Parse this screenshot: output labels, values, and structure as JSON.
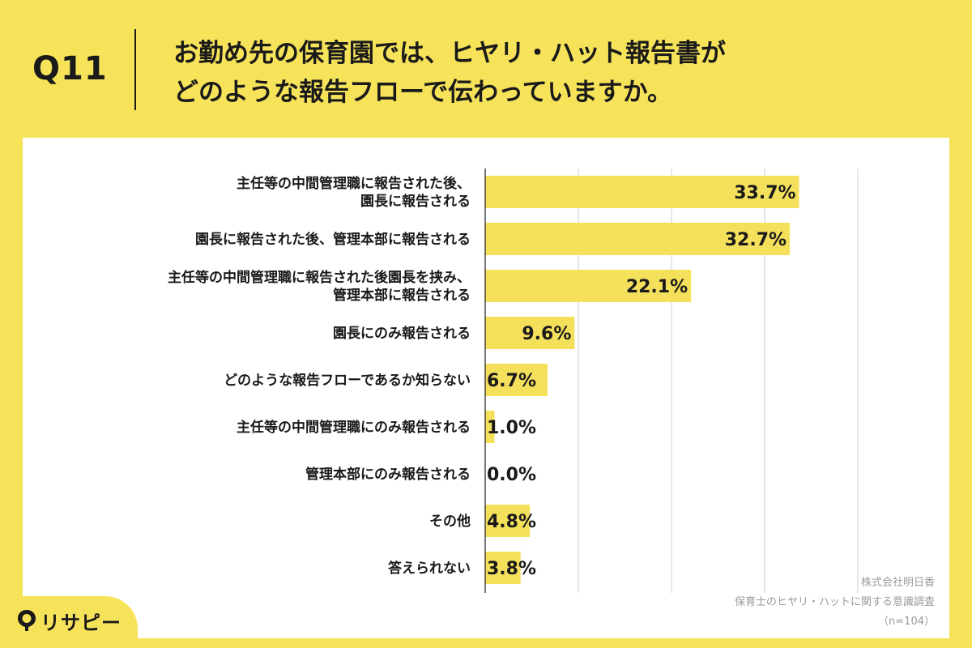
{
  "header": {
    "question_number": "Q11",
    "title": "お勤め先の保育園では、ヒヤリ・ハット報告書が\nどのような報告フローで伝わっていますか。"
  },
  "credits": {
    "company": "株式会社明日香",
    "survey": "保育士のヒヤリ・ハットに関する意識調査",
    "sample": "（n=104）"
  },
  "logo": {
    "text": "リサピー",
    "icon": "map-pin-icon"
  },
  "colors": {
    "background": "#f7e35a",
    "bar": "#f5e05c",
    "panel": "#ffffff",
    "grid": "#cfcfcf",
    "axis": "#1a1a1a"
  },
  "chart_data": {
    "type": "bar",
    "orientation": "horizontal",
    "categories": [
      "主任等の中間管理職に報告された後、\n園長に報告される",
      "園長に報告された後、管理本部に報告される",
      "主任等の中間管理職に報告された後園長を挟み、\n管理本部に報告される",
      "園長にのみ報告される",
      "どのような報告フローであるか知らない",
      "主任等の中間管理職にのみ報告される",
      "管理本部にのみ報告される",
      "その他",
      "答えられない"
    ],
    "values": [
      33.7,
      32.7,
      22.1,
      9.6,
      6.7,
      1.0,
      0.0,
      4.8,
      3.8
    ],
    "value_labels": [
      "33.7%",
      "32.7%",
      "22.1%",
      "9.6%",
      "6.7%",
      "1.0%",
      "0.0%",
      "4.8%",
      "3.8%"
    ],
    "xlim": [
      0,
      40
    ],
    "grid": true,
    "legend": false
  }
}
